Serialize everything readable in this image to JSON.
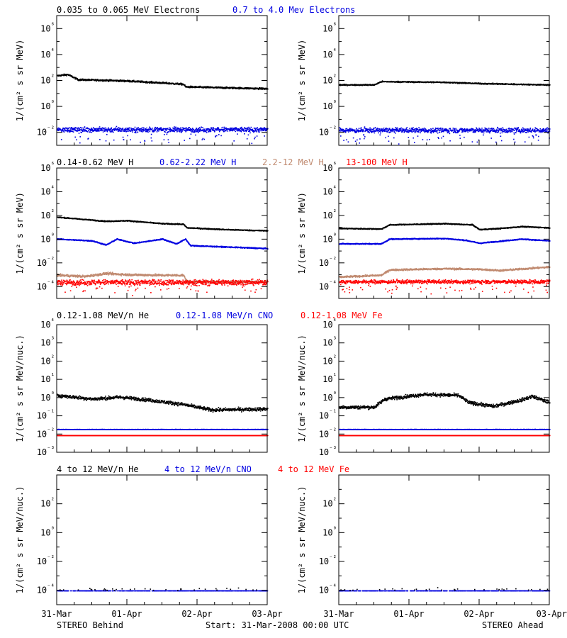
{
  "footer": {
    "left": "STEREO Behind",
    "center": "Start: 31-Mar-2008 00:00 UTC",
    "right": "STEREO Ahead"
  },
  "colors": {
    "black": "#000000",
    "blue": "#0000e0",
    "tan": "#c08a70",
    "red": "#ff0000"
  },
  "x_axis": {
    "ticks": [
      "31-Mar",
      "01-Apr",
      "02-Apr",
      "03-Apr"
    ],
    "range_days": [
      0,
      3
    ]
  },
  "chart_data": [
    {
      "type": "scatter",
      "log_y": true,
      "legend": [
        {
          "text": "0.035 to 0.065 MeV Electrons",
          "color": "#000000"
        },
        {
          "text": "0.7 to 4.0 Mev Electrons",
          "color": "#0000e0"
        }
      ],
      "ylabel": "1/(cm² s sr MeV)",
      "ylim_exp": [
        -3,
        7
      ],
      "ytick_exp": [
        -2,
        0,
        2,
        4,
        6
      ],
      "panels": [
        {
          "side": "STEREO Behind",
          "series": [
            {
              "color": "#000000",
              "noise": 0.06,
              "level": [
                [
                  0,
                  2.4
                ],
                [
                  0.15,
                  2.5
                ],
                [
                  0.3,
                  2.1
                ],
                [
                  0.7,
                  2.05
                ],
                [
                  1.0,
                  2.0
                ],
                [
                  1.5,
                  1.85
                ],
                [
                  1.8,
                  1.75
                ],
                [
                  1.83,
                  1.55
                ],
                [
                  3.0,
                  1.4
                ]
              ]
            },
            {
              "color": "#0000e0",
              "noise": 0.18,
              "level": [
                [
                  0,
                  -1.75
                ],
                [
                  3.0,
                  -1.75
                ]
              ]
            }
          ]
        },
        {
          "side": "STEREO Ahead",
          "series": [
            {
              "color": "#000000",
              "noise": 0.04,
              "level": [
                [
                  0,
                  1.7
                ],
                [
                  0.5,
                  1.7
                ],
                [
                  0.6,
                  1.95
                ],
                [
                  1.5,
                  1.9
                ],
                [
                  2.0,
                  1.8
                ],
                [
                  3.0,
                  1.7
                ]
              ]
            },
            {
              "color": "#0000e0",
              "noise": 0.18,
              "level": [
                [
                  0,
                  -1.8
                ],
                [
                  3.0,
                  -1.8
                ]
              ]
            }
          ]
        }
      ]
    },
    {
      "type": "scatter",
      "log_y": true,
      "legend": [
        {
          "text": "0.14-0.62 MeV H",
          "color": "#000000"
        },
        {
          "text": "0.62-2.22 MeV H",
          "color": "#0000e0"
        },
        {
          "text": "2.2-12 MeV H",
          "color": "#c08a70"
        },
        {
          "text": "13-100 MeV H",
          "color": "#ff0000"
        }
      ],
      "ylabel": "1/(cm² s sr MeV)",
      "ylim_exp": [
        -5,
        6
      ],
      "ytick_exp": [
        -4,
        -2,
        0,
        2,
        4,
        6
      ],
      "panels": [
        {
          "side": "STEREO Behind",
          "series": [
            {
              "color": "#000000",
              "noise": 0.04,
              "level": [
                [
                  0,
                  1.9
                ],
                [
                  0.3,
                  1.75
                ],
                [
                  0.7,
                  1.55
                ],
                [
                  1.0,
                  1.6
                ],
                [
                  1.5,
                  1.35
                ],
                [
                  1.8,
                  1.3
                ],
                [
                  1.85,
                  1.0
                ],
                [
                  2.4,
                  0.85
                ],
                [
                  3.0,
                  0.75
                ]
              ]
            },
            {
              "color": "#0000e0",
              "noise": 0.04,
              "level": [
                [
                  0,
                  0.05
                ],
                [
                  0.5,
                  -0.1
                ],
                [
                  0.7,
                  -0.45
                ],
                [
                  0.85,
                  0.05
                ],
                [
                  1.1,
                  -0.3
                ],
                [
                  1.5,
                  0.05
                ],
                [
                  1.7,
                  -0.35
                ],
                [
                  1.83,
                  0.05
                ],
                [
                  1.9,
                  -0.5
                ],
                [
                  3.0,
                  -0.75
                ]
              ]
            },
            {
              "color": "#c08a70",
              "noise": 0.09,
              "level": [
                [
                  0,
                  -3.0
                ],
                [
                  0.4,
                  -3.1
                ],
                [
                  0.7,
                  -2.85
                ],
                [
                  1.0,
                  -2.95
                ],
                [
                  1.5,
                  -3.0
                ],
                [
                  1.8,
                  -3.0
                ],
                [
                  1.85,
                  -3.55
                ],
                [
                  3.0,
                  -3.55
                ]
              ]
            },
            {
              "color": "#ff0000",
              "noise": 0.22,
              "level": [
                [
                  0,
                  -3.6
                ],
                [
                  3.0,
                  -3.6
                ]
              ]
            }
          ]
        },
        {
          "side": "STEREO Ahead",
          "series": [
            {
              "color": "#000000",
              "noise": 0.04,
              "level": [
                [
                  0,
                  0.95
                ],
                [
                  0.6,
                  0.9
                ],
                [
                  0.72,
                  1.25
                ],
                [
                  1.5,
                  1.35
                ],
                [
                  1.9,
                  1.25
                ],
                [
                  2.0,
                  0.85
                ],
                [
                  2.3,
                  0.95
                ],
                [
                  2.6,
                  1.1
                ],
                [
                  3.0,
                  1.0
                ]
              ]
            },
            {
              "color": "#0000e0",
              "noise": 0.04,
              "level": [
                [
                  0,
                  -0.35
                ],
                [
                  0.6,
                  -0.35
                ],
                [
                  0.72,
                  0.05
                ],
                [
                  1.5,
                  0.1
                ],
                [
                  1.8,
                  -0.05
                ],
                [
                  2.0,
                  -0.3
                ],
                [
                  2.6,
                  0.05
                ],
                [
                  3.0,
                  -0.1
                ]
              ]
            },
            {
              "color": "#c08a70",
              "noise": 0.07,
              "level": [
                [
                  0,
                  -3.15
                ],
                [
                  0.6,
                  -3.0
                ],
                [
                  0.72,
                  -2.55
                ],
                [
                  1.5,
                  -2.45
                ],
                [
                  2.0,
                  -2.5
                ],
                [
                  2.3,
                  -2.6
                ],
                [
                  3.0,
                  -2.3
                ]
              ]
            },
            {
              "color": "#ff0000",
              "noise": 0.15,
              "level": [
                [
                  0,
                  -3.55
                ],
                [
                  3.0,
                  -3.55
                ]
              ]
            }
          ]
        }
      ]
    },
    {
      "type": "scatter",
      "log_y": true,
      "legend": [
        {
          "text": "0.12-1.08 MeV/n He",
          "color": "#000000"
        },
        {
          "text": "0.12-1.08 MeV/n CNO",
          "color": "#0000e0"
        },
        {
          "text": "0.12-1.08 MeV Fe",
          "color": "#ff0000"
        }
      ],
      "ylabel": "1/(cm² s sr MeV/nuc.)",
      "ylim_exp": [
        -3,
        4
      ],
      "ytick_exp": [
        -3,
        -2,
        -1,
        0,
        1,
        2,
        3,
        4
      ],
      "panels": [
        {
          "side": "STEREO Behind",
          "series": [
            {
              "color": "#000000",
              "noise": 0.09,
              "level": [
                [
                  0,
                  0.15
                ],
                [
                  0.5,
                  -0.05
                ],
                [
                  0.9,
                  0.05
                ],
                [
                  1.3,
                  -0.1
                ],
                [
                  1.8,
                  -0.35
                ],
                [
                  2.2,
                  -0.65
                ],
                [
                  3.0,
                  -0.6
                ]
              ]
            },
            {
              "color": "#0000e0",
              "noise": 0.01,
              "level": [
                [
                  0,
                  -1.72
                ],
                [
                  3.0,
                  -1.72
                ]
              ]
            },
            {
              "color": "#ff0000",
              "noise": 0.0,
              "level": [
                [
                  0,
                  -2.05
                ],
                [
                  3.0,
                  -2.05
                ]
              ]
            }
          ]
        },
        {
          "side": "STEREO Ahead",
          "series": [
            {
              "color": "#000000",
              "noise": 0.09,
              "level": [
                [
                  0,
                  -0.5
                ],
                [
                  0.5,
                  -0.5
                ],
                [
                  0.65,
                  -0.05
                ],
                [
                  1.2,
                  0.2
                ],
                [
                  1.7,
                  0.15
                ],
                [
                  1.85,
                  -0.25
                ],
                [
                  2.2,
                  -0.45
                ],
                [
                  2.6,
                  -0.1
                ],
                [
                  2.75,
                  0.1
                ],
                [
                  3.0,
                  -0.25
                ]
              ]
            },
            {
              "color": "#0000e0",
              "noise": 0.01,
              "level": [
                [
                  0,
                  -1.72
                ],
                [
                  3.0,
                  -1.72
                ]
              ]
            },
            {
              "color": "#ff0000",
              "noise": 0.0,
              "level": [
                [
                  0,
                  -2.05
                ],
                [
                  3.0,
                  -2.05
                ]
              ]
            }
          ]
        }
      ]
    },
    {
      "type": "scatter",
      "log_y": true,
      "legend": [
        {
          "text": "4 to 12 MeV/n He",
          "color": "#000000"
        },
        {
          "text": "4 to 12 MeV/n CNO",
          "color": "#0000e0"
        },
        {
          "text": "4 to 12 MeV Fe",
          "color": "#ff0000"
        }
      ],
      "ylabel": "1/(cm² s sr MeV/nuc.)",
      "ylim_exp": [
        -5,
        4
      ],
      "ytick_exp": [
        -4,
        -2,
        0,
        2
      ],
      "panels": [
        {
          "side": "STEREO Behind",
          "series": [
            {
              "color": "#0000e0",
              "noise": 0.0,
              "sparse": 0.45,
              "level": [
                [
                  0,
                  -4.0
                ],
                [
                  3.0,
                  -4.0
                ]
              ]
            },
            {
              "color": "#000000",
              "noise": 0.08,
              "sparse": 0.96,
              "level": [
                [
                  0,
                  -3.9
                ],
                [
                  3.0,
                  -3.9
                ]
              ]
            }
          ]
        },
        {
          "side": "STEREO Ahead",
          "series": [
            {
              "color": "#0000e0",
              "noise": 0.0,
              "sparse": 0.45,
              "level": [
                [
                  0,
                  -4.0
                ],
                [
                  3.0,
                  -4.0
                ]
              ]
            },
            {
              "color": "#000000",
              "noise": 0.08,
              "sparse": 0.96,
              "level": [
                [
                  0,
                  -3.9
                ],
                [
                  3.0,
                  -3.9
                ]
              ]
            }
          ]
        }
      ]
    }
  ]
}
